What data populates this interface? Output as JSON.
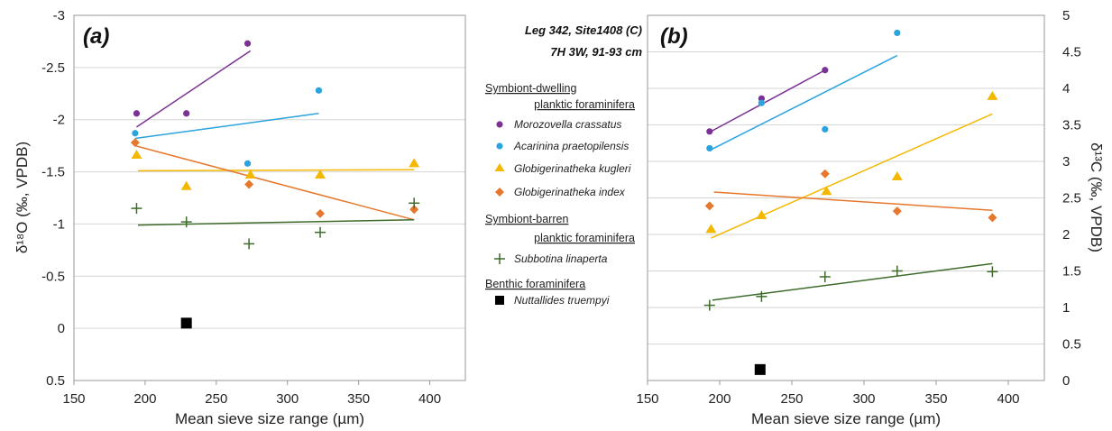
{
  "legend": {
    "title_line1": "Leg 342, Site1408 (C)",
    "title_line2": "7H 3W, 91-93 cm",
    "group_symbiont_dwelling_1": "Symbiont-dwelling",
    "group_symbiont_dwelling_2": "planktic foraminifera",
    "group_symbiont_barren_1": "Symbiont-barren",
    "group_symbiont_barren_2": "planktic foraminifera",
    "group_benthic": "Benthic foraminifera"
  },
  "colors": {
    "morozovella": "#7B3294",
    "acarinina": "#2BA3DE",
    "kugleri": "#F5B800",
    "index": "#E6782D",
    "subbotina": "#3E6B2A",
    "nuttallides": "#000000"
  },
  "chart_data": [
    {
      "type": "scatter",
      "panel_label": "(a)",
      "xlabel": "Mean sieve size range (µm)",
      "ylabel": "δ¹⁸O (‰, VPDB)",
      "xlim": [
        150,
        425
      ],
      "ylim": [
        0.5,
        -3
      ],
      "y_inverted": true,
      "xticks": [
        150,
        200,
        250,
        300,
        350,
        400
      ],
      "yticks": [
        0.5,
        0,
        -0.5,
        -1,
        -1.5,
        -2,
        -2.5,
        -3
      ],
      "ytick_labels": [
        "0.5",
        "0",
        "-0.5",
        "-1",
        "-1.5",
        "-2",
        "-2.5",
        "-3"
      ],
      "grid": "horizontal",
      "series": [
        {
          "name": "Morozovella crassatus",
          "marker": "circle",
          "color_key": "morozovella",
          "points": [
            [
              194,
              -2.06
            ],
            [
              229,
              -2.06
            ],
            [
              272,
              -2.73
            ]
          ],
          "trend": [
            [
              194,
              -1.93
            ],
            [
              274,
              -2.66
            ]
          ]
        },
        {
          "name": "Acarinina praetopilensis",
          "marker": "circle",
          "color_key": "acarinina",
          "points": [
            [
              193,
              -1.87
            ],
            [
              272,
              -1.58
            ],
            [
              322,
              -2.28
            ]
          ],
          "trend": [
            [
              193,
              -1.82
            ],
            [
              322,
              -2.06
            ]
          ]
        },
        {
          "name": "Globigerinatheka kugleri",
          "marker": "triangle",
          "color_key": "kugleri",
          "points": [
            [
              194,
              -1.66
            ],
            [
              229,
              -1.36
            ],
            [
              274,
              -1.47
            ],
            [
              323,
              -1.47
            ],
            [
              389,
              -1.58
            ]
          ],
          "trend": [
            [
              195,
              -1.51
            ],
            [
              389,
              -1.52
            ]
          ]
        },
        {
          "name": "Globigerinatheka index",
          "marker": "diamond",
          "color_key": "index",
          "points": [
            [
              193,
              -1.78
            ],
            [
              273,
              -1.38
            ],
            [
              323,
              -1.1
            ],
            [
              389,
              -1.14
            ]
          ],
          "trend": [
            [
              193,
              -1.75
            ],
            [
              389,
              -1.04
            ]
          ]
        },
        {
          "name": "Subbotina linaperta",
          "marker": "plus",
          "color_key": "subbotina",
          "points": [
            [
              194,
              -1.15
            ],
            [
              229,
              -1.02
            ],
            [
              273,
              -0.81
            ],
            [
              323,
              -0.92
            ],
            [
              389,
              -1.2
            ]
          ],
          "trend": [
            [
              195,
              -0.99
            ],
            [
              389,
              -1.04
            ]
          ]
        },
        {
          "name": "Nuttallides truempyi",
          "marker": "square",
          "color_key": "nuttallides",
          "points": [
            [
              229,
              -0.05
            ]
          ],
          "trend": null
        }
      ]
    },
    {
      "type": "scatter",
      "panel_label": "(b)",
      "xlabel": "Mean sieve size range (µm)",
      "ylabel": "δ¹³C (‰, VPDB)",
      "xlim": [
        150,
        425
      ],
      "ylim": [
        0,
        5
      ],
      "y_axis_side": "right",
      "xticks": [
        150,
        200,
        250,
        300,
        350,
        400
      ],
      "yticks": [
        0,
        0.5,
        1,
        1.5,
        2,
        2.5,
        3,
        3.5,
        4,
        4.5,
        5
      ],
      "ytick_labels": [
        "0",
        "0.5",
        "1",
        "1.5",
        "2",
        "2.5",
        "3",
        "3.5",
        "4",
        "4.5",
        "5"
      ],
      "grid": "horizontal",
      "series": [
        {
          "name": "Morozovella crassatus",
          "marker": "circle",
          "color_key": "morozovella",
          "points": [
            [
              193,
              3.41
            ],
            [
              229,
              3.86
            ],
            [
              273,
              4.25
            ]
          ],
          "trend": [
            [
              193,
              3.4
            ],
            [
              273,
              4.25
            ]
          ]
        },
        {
          "name": "Acarinina praetopilensis",
          "marker": "circle",
          "color_key": "acarinina",
          "points": [
            [
              193,
              3.18
            ],
            [
              229,
              3.8
            ],
            [
              273,
              3.44
            ],
            [
              323,
              4.76
            ]
          ],
          "trend": [
            [
              193,
              3.15
            ],
            [
              323,
              4.45
            ]
          ]
        },
        {
          "name": "Globigerinatheka kugleri",
          "marker": "triangle",
          "color_key": "kugleri",
          "points": [
            [
              194,
              2.07
            ],
            [
              229,
              2.26
            ],
            [
              274,
              2.59
            ],
            [
              323,
              2.79
            ],
            [
              389,
              3.89
            ]
          ],
          "trend": [
            [
              194,
              1.95
            ],
            [
              389,
              3.65
            ]
          ]
        },
        {
          "name": "Globigerinatheka index",
          "marker": "diamond",
          "color_key": "index",
          "points": [
            [
              193,
              2.39
            ],
            [
              273,
              2.83
            ],
            [
              323,
              2.32
            ],
            [
              389,
              2.23
            ]
          ],
          "trend": [
            [
              196,
              2.58
            ],
            [
              389,
              2.33
            ]
          ]
        },
        {
          "name": "Subbotina linaperta",
          "marker": "plus",
          "color_key": "subbotina",
          "points": [
            [
              193,
              1.03
            ],
            [
              229,
              1.15
            ],
            [
              273,
              1.42
            ],
            [
              323,
              1.5
            ],
            [
              389,
              1.49
            ]
          ],
          "trend": [
            [
              195,
              1.1
            ],
            [
              389,
              1.6
            ]
          ]
        },
        {
          "name": "Nuttallides truempyi",
          "marker": "square",
          "color_key": "nuttallides",
          "points": [
            [
              228,
              0.15
            ]
          ],
          "trend": null
        }
      ]
    }
  ]
}
